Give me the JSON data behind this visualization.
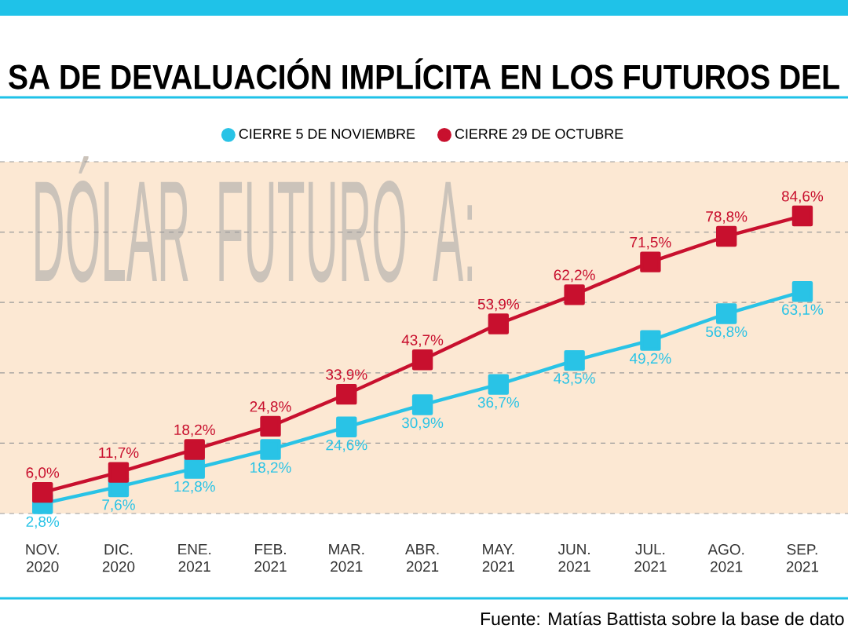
{
  "chart_data": {
    "type": "line",
    "title": "SA DE DEVALUACIÓN IMPLÍCITA EN LOS FUTUROS DEL",
    "categories": [
      "NOV. 2020",
      "DIC. 2020",
      "ENE. 2021",
      "FEB. 2021",
      "MAR. 2021",
      "ABR. 2021",
      "MAY. 2021",
      "JUN. 2021",
      "JUL. 2021",
      "AGO. 2021",
      "SEP. 2021"
    ],
    "series": [
      {
        "name": "CIERRE 5 DE NOVIEMBRE",
        "color": "#29c3e6",
        "values": [
          2.8,
          7.6,
          12.8,
          18.2,
          24.6,
          30.9,
          36.7,
          43.5,
          49.2,
          56.8,
          63.1
        ],
        "value_labels": [
          "2,8%",
          "7,6%",
          "12,8%",
          "18,2%",
          "24,6%",
          "30,9%",
          "36,7%",
          "43,5%",
          "49,2%",
          "56,8%",
          "63,1%"
        ]
      },
      {
        "name": "CIERRE 29 DE OCTUBRE",
        "color": "#c8102e",
        "values": [
          6.0,
          11.7,
          18.2,
          24.8,
          33.9,
          43.7,
          53.9,
          62.2,
          71.5,
          78.8,
          84.6
        ],
        "value_labels": [
          "6,0%",
          "11,7%",
          "18,2%",
          "24,8%",
          "33,9%",
          "43,7%",
          "53,9%",
          "62,2%",
          "71,5%",
          "78,8%",
          "84,6%"
        ]
      }
    ],
    "ylim": [
      0,
      100
    ],
    "yticks": [
      {
        "value": 0,
        "label": null
      },
      {
        "value": 20,
        "label": null
      },
      {
        "value": 40,
        "label": null
      },
      {
        "value": 60,
        "label": null
      },
      {
        "value": 80,
        "label": null
      },
      {
        "value": 100,
        "label": null
      }
    ],
    "grid": "y",
    "tick_labels": "x",
    "legend": "top",
    "marker": "square",
    "line_style": "solid",
    "annotations": [
      "DÓLAR FUTURO A:",
      "Fuente: Matías Battista sobre la base de dato"
    ]
  }
}
